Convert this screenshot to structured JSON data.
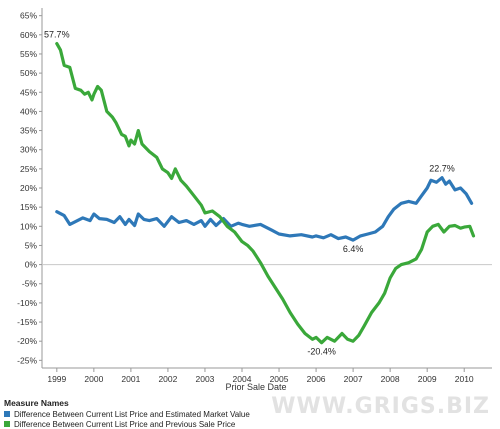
{
  "chart_data": {
    "type": "line",
    "xlabel": "Prior Sale Date",
    "ylabel": "",
    "x_ticks": [
      "1999",
      "2000",
      "2001",
      "2002",
      "2003",
      "2004",
      "2005",
      "2006",
      "2007",
      "2008",
      "2009",
      "2010"
    ],
    "y_ticks": [
      "65%",
      "60%",
      "55%",
      "50%",
      "45%",
      "40%",
      "35%",
      "30%",
      "25%",
      "20%",
      "15%",
      "10%",
      "5%",
      "0%",
      "-5%",
      "-10%",
      "-15%",
      "-20%",
      "-25%"
    ],
    "xlim": [
      1998.6,
      2010.75
    ],
    "ylim": [
      -27,
      67
    ],
    "grid": "zero-line only",
    "legend_position": "bottom-left",
    "series": [
      {
        "name": "Difference Between Current List Price and Estimated Market Value",
        "color": "#2e78b8",
        "x": [
          1999.0,
          1999.2,
          1999.35,
          1999.5,
          1999.7,
          1999.9,
          2000.0,
          2000.15,
          2000.35,
          2000.55,
          2000.7,
          2000.85,
          2000.95,
          2001.1,
          2001.2,
          2001.35,
          2001.5,
          2001.7,
          2001.9,
          2002.1,
          2002.3,
          2002.5,
          2002.7,
          2002.9,
          2003.0,
          2003.15,
          2003.3,
          2003.5,
          2003.7,
          2003.9,
          2004.0,
          2004.2,
          2004.5,
          2004.8,
          2005.0,
          2005.3,
          2005.6,
          2005.9,
          2006.0,
          2006.2,
          2006.4,
          2006.6,
          2006.8,
          2007.0,
          2007.2,
          2007.4,
          2007.6,
          2007.8,
          2007.95,
          2008.1,
          2008.3,
          2008.5,
          2008.7,
          2008.85,
          2009.0,
          2009.1,
          2009.25,
          2009.4,
          2009.5,
          2009.6,
          2009.75,
          2009.9,
          2010.05,
          2010.2
        ],
        "y": [
          13.8,
          12.8,
          10.5,
          11.2,
          12.2,
          11.5,
          13.2,
          12.0,
          11.8,
          11.0,
          12.5,
          10.5,
          11.8,
          10.2,
          13.2,
          11.8,
          11.5,
          12.0,
          10.0,
          12.5,
          11.0,
          11.5,
          10.5,
          11.5,
          10.0,
          11.8,
          10.2,
          12.0,
          10.0,
          10.8,
          10.5,
          10.0,
          10.5,
          9.0,
          8.0,
          7.5,
          7.8,
          7.2,
          7.5,
          7.0,
          7.8,
          6.8,
          7.2,
          6.4,
          7.5,
          8.0,
          8.5,
          10.0,
          12.5,
          14.5,
          16.0,
          16.5,
          16.0,
          18.0,
          20.0,
          22.0,
          21.5,
          22.7,
          21.0,
          21.8,
          19.5,
          20.0,
          18.5,
          16.0
        ]
      },
      {
        "name": "Difference Between Current List Price and Previous Sale Price",
        "color": "#3aa83a",
        "x": [
          1999.0,
          1999.1,
          1999.2,
          1999.35,
          1999.5,
          1999.65,
          1999.75,
          1999.85,
          1999.95,
          2000.0,
          2000.1,
          2000.2,
          2000.35,
          2000.5,
          2000.6,
          2000.75,
          2000.85,
          2000.95,
          2001.0,
          2001.1,
          2001.2,
          2001.3,
          2001.5,
          2001.7,
          2001.85,
          2002.0,
          2002.1,
          2002.2,
          2002.35,
          2002.5,
          2002.7,
          2002.9,
          2003.0,
          2003.2,
          2003.4,
          2003.6,
          2003.8,
          2004.0,
          2004.15,
          2004.3,
          2004.5,
          2004.7,
          2004.9,
          2005.1,
          2005.3,
          2005.5,
          2005.7,
          2005.9,
          2006.0,
          2006.15,
          2006.3,
          2006.5,
          2006.7,
          2006.85,
          2007.0,
          2007.15,
          2007.3,
          2007.5,
          2007.7,
          2007.85,
          2008.0,
          2008.15,
          2008.3,
          2008.5,
          2008.7,
          2008.85,
          2009.0,
          2009.15,
          2009.3,
          2009.45,
          2009.6,
          2009.75,
          2009.9,
          2010.0,
          2010.15,
          2010.25
        ],
        "y": [
          57.7,
          56.0,
          52.0,
          51.5,
          46.0,
          45.5,
          44.5,
          45.0,
          43.0,
          44.5,
          46.5,
          45.5,
          40.0,
          38.5,
          37.0,
          34.0,
          33.5,
          31.0,
          32.5,
          31.5,
          35.0,
          31.5,
          29.5,
          28.0,
          25.0,
          24.0,
          22.5,
          25.0,
          22.0,
          20.5,
          18.0,
          15.5,
          13.5,
          14.0,
          12.5,
          10.0,
          8.5,
          6.0,
          5.0,
          3.5,
          0.5,
          -3.0,
          -6.0,
          -9.0,
          -12.5,
          -15.5,
          -18.0,
          -19.5,
          -19.0,
          -20.4,
          -19.0,
          -20.0,
          -18.0,
          -19.5,
          -20.0,
          -18.5,
          -16.0,
          -12.5,
          -10.0,
          -7.5,
          -3.5,
          -1.0,
          0.0,
          0.5,
          1.5,
          4.0,
          8.5,
          10.0,
          10.5,
          8.5,
          10.0,
          10.2,
          9.5,
          9.8,
          10.0,
          7.5
        ]
      }
    ],
    "annotations": [
      {
        "text": "57.7%",
        "x": 1999.0,
        "y": 57.7,
        "anchor": "above"
      },
      {
        "text": "22.7%",
        "x": 2009.4,
        "y": 22.7,
        "anchor": "above"
      },
      {
        "text": "6.4%",
        "x": 2007.0,
        "y": 6.4,
        "anchor": "below"
      },
      {
        "text": "-20.4%",
        "x": 2006.15,
        "y": -20.4,
        "anchor": "below"
      }
    ]
  },
  "legend": {
    "title": "Measure Names",
    "items": [
      {
        "label": "Difference Between Current List Price and Estimated Market Value",
        "color": "#2e78b8"
      },
      {
        "label": "Difference Between Current List Price and Previous Sale Price",
        "color": "#3aa83a"
      }
    ]
  },
  "watermark": "WWW.GRIGS.BIZ"
}
